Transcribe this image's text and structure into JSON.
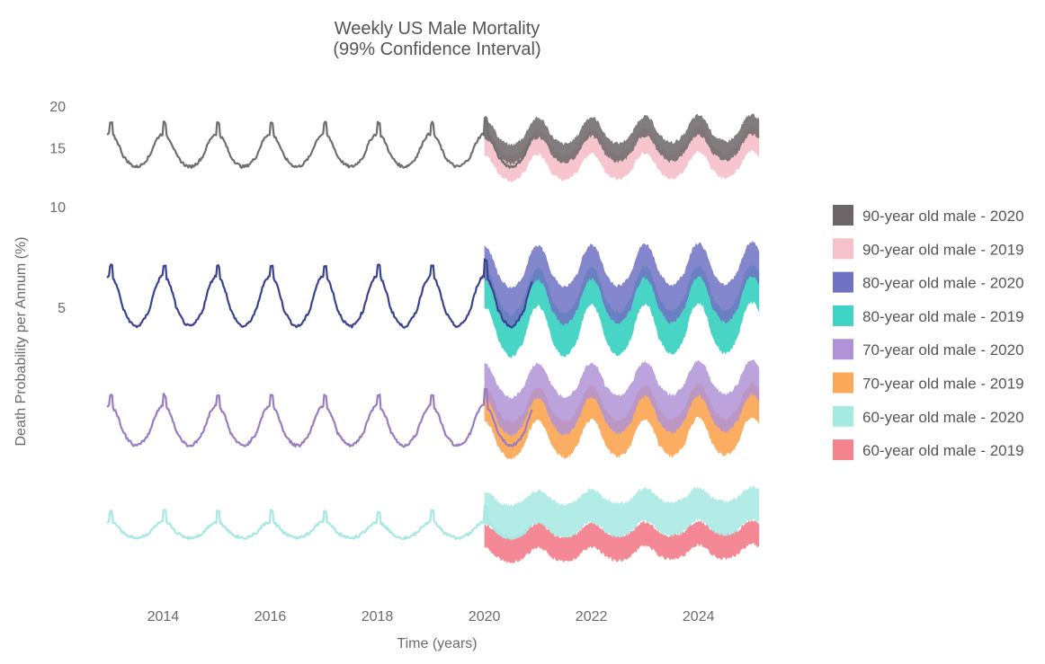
{
  "chart_data": {
    "type": "area",
    "title": "Weekly US Male Mortality",
    "subtitle": "(99% Confidence Interval)",
    "xlabel": "Time (years)",
    "ylabel": "Death Probability per Annum (%)",
    "xlim": [
      2012.8,
      2025.4
    ],
    "x_ticks": [
      2014,
      2016,
      2018,
      2020,
      2022,
      2024
    ],
    "y_scale": "log",
    "ylim": [
      0.7,
      21
    ],
    "y_ticks": [
      5,
      10,
      15,
      20
    ],
    "grid": false,
    "legend_position": "right",
    "history_end": 2020.0,
    "forecast_start": 2020.0,
    "forecast_end": 2025.15,
    "legend": [
      {
        "name": "90-year old male - 2020",
        "color": "#6b6668"
      },
      {
        "name": "90-year old male - 2019",
        "color": "#f5c2cb"
      },
      {
        "name": "80-year old male - 2020",
        "color": "#6f72c2"
      },
      {
        "name": "80-year old male - 2019",
        "color": "#3fd3c3"
      },
      {
        "name": "70-year old male - 2020",
        "color": "#b093d6"
      },
      {
        "name": "70-year old male - 2019",
        "color": "#fbaa5a"
      },
      {
        "name": "60-year old male - 2020",
        "color": "#a6e9e2"
      },
      {
        "name": "60-year old male - 2019",
        "color": "#f3838f"
      }
    ],
    "series": [
      {
        "name": "90-year old male",
        "line_color": "#6f6f6f",
        "history": {
          "base": 14.2,
          "seasonal_amp": 2.3
        },
        "bands": [
          {
            "label": "90-year old male - 2019",
            "color": "#f5c2cb",
            "lower": 12.6,
            "upper": 15.0,
            "seasonal_amp": 1.9
          },
          {
            "label": "90-year old male - 2020",
            "color": "#6b6668",
            "lower": 14.2,
            "upper": 16.2,
            "seasonal_amp": 2.1
          }
        ]
      },
      {
        "name": "80-year old male",
        "line_color": "#3b4390",
        "history": {
          "base": 4.95,
          "seasonal_amp": 1.25
        },
        "bands": [
          {
            "label": "80-year old male - 2019",
            "color": "#3fd3c3",
            "lower": 4.0,
            "upper": 5.3,
            "seasonal_amp": 1.2
          },
          {
            "label": "80-year old male - 2020",
            "color": "#6f72c2",
            "lower": 4.9,
            "upper": 6.3,
            "seasonal_amp": 1.3
          }
        ]
      },
      {
        "name": "70-year old male",
        "line_color": "#9a7cc4",
        "history": {
          "base": 2.12,
          "seasonal_amp": 0.42
        },
        "bands": [
          {
            "label": "70-year old male - 2019",
            "color": "#fbaa5a",
            "lower": 1.92,
            "upper": 2.45,
            "seasonal_amp": 0.42
          },
          {
            "label": "70-year old male - 2020",
            "color": "#b093d6",
            "lower": 2.25,
            "upper": 2.9,
            "seasonal_amp": 0.48
          }
        ]
      },
      {
        "name": "60-year old male",
        "line_color": "#a6e9e2",
        "history": {
          "base": 1.06,
          "seasonal_amp": 0.08
        },
        "bands": [
          {
            "label": "60-year old male - 2019",
            "color": "#f3838f",
            "lower": 0.89,
            "upper": 1.05,
            "seasonal_amp": 0.07
          },
          {
            "label": "60-year old male - 2020",
            "color": "#a6e9e2",
            "lower": 1.05,
            "upper": 1.32,
            "seasonal_amp": 0.09
          }
        ]
      }
    ]
  }
}
